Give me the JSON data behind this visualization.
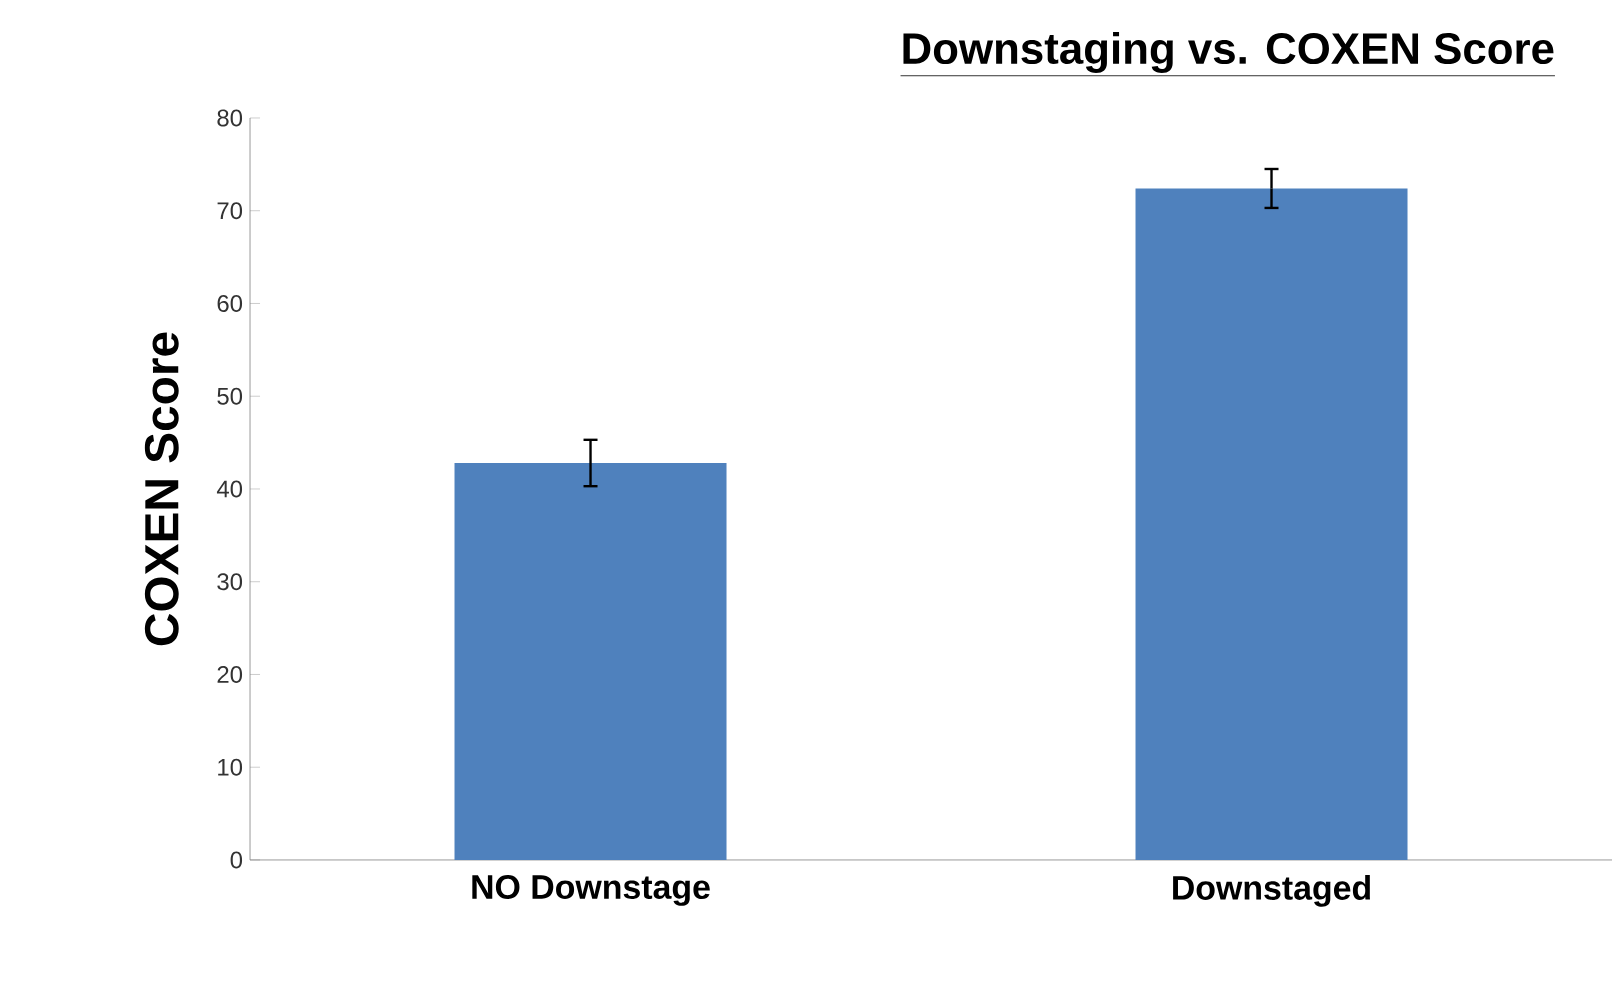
{
  "chart_data": {
    "type": "bar",
    "title": "Downstaging vs. COXEN Score",
    "ylabel": "COXEN Score",
    "categories": [
      "NO Downstage",
      "Downstaged"
    ],
    "values": [
      42.8,
      72.4
    ],
    "errors": [
      2.5,
      2.1
    ],
    "color": "#4f81bd",
    "ylim": [
      0,
      80
    ],
    "yticks": [
      0,
      10,
      20,
      30,
      40,
      50,
      60,
      70,
      80
    ],
    "grid": false
  }
}
